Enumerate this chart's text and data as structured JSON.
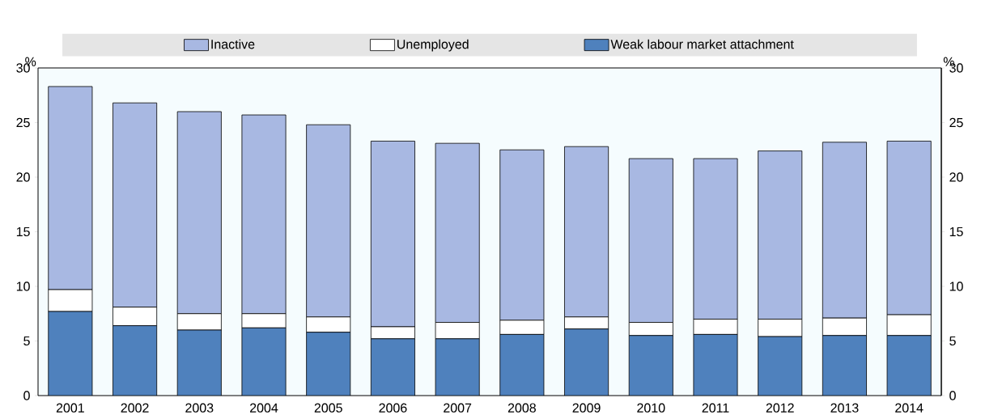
{
  "chart_data": {
    "type": "bar",
    "stacked": true,
    "categories": [
      "2001",
      "2002",
      "2003",
      "2004",
      "2005",
      "2006",
      "2007",
      "2008",
      "2009",
      "2010",
      "2011",
      "2012",
      "2013",
      "2014"
    ],
    "series": [
      {
        "name": "Weak labour market attachment",
        "color": "#4f81bd",
        "values": [
          7.7,
          6.4,
          6.0,
          6.2,
          5.8,
          5.2,
          5.2,
          5.6,
          6.1,
          5.5,
          5.6,
          5.4,
          5.5,
          5.5
        ]
      },
      {
        "name": "Unemployed",
        "color": "#ffffff",
        "values": [
          2.0,
          1.7,
          1.5,
          1.3,
          1.4,
          1.1,
          1.5,
          1.3,
          1.1,
          1.2,
          1.4,
          1.6,
          1.6,
          1.9
        ]
      },
      {
        "name": "Inactive",
        "color": "#a8b8e2",
        "values": [
          18.6,
          18.7,
          18.5,
          18.2,
          17.6,
          17.0,
          16.4,
          15.6,
          15.6,
          15.0,
          14.7,
          15.4,
          16.1,
          15.9
        ]
      }
    ],
    "ylabel": "%",
    "y2label": "%",
    "ylim": [
      0,
      30
    ],
    "yticks": [
      0,
      5,
      10,
      15,
      20,
      25,
      30
    ],
    "y2lim": [
      0,
      30
    ],
    "y2ticks": [
      0,
      5,
      10,
      15,
      20,
      25,
      30
    ],
    "legend": "top"
  }
}
